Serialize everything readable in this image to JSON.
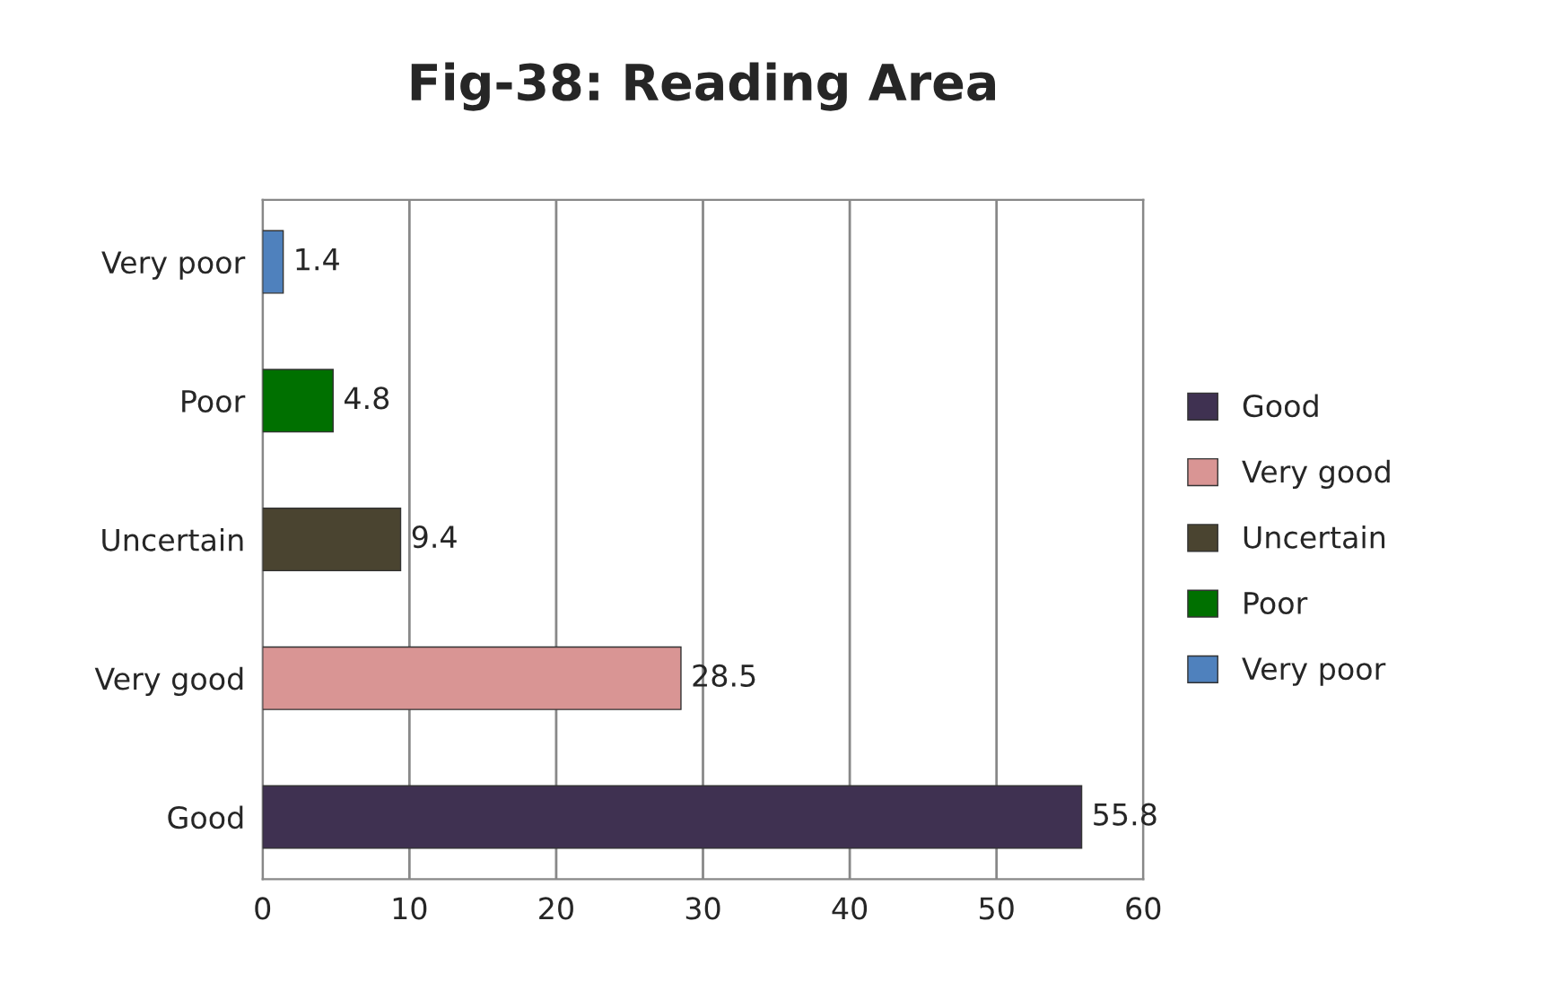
{
  "chart_data": {
    "type": "bar",
    "orientation": "horizontal",
    "stacked": true,
    "title": "Fig-38: Reading Area",
    "categories": [
      "Very poor",
      "Poor",
      "Uncertain",
      "Very good",
      "Good"
    ],
    "series": [
      {
        "name": "Good",
        "color": "#3f3151",
        "values": [
          null,
          null,
          null,
          null,
          55.8
        ]
      },
      {
        "name": "Very good",
        "color": "#d99594",
        "values": [
          null,
          null,
          null,
          28.5,
          null
        ]
      },
      {
        "name": "Uncertain",
        "color": "#4a4430",
        "values": [
          null,
          null,
          9.4,
          null,
          null
        ]
      },
      {
        "name": "Poor",
        "color": "#007000",
        "values": [
          null,
          4.8,
          null,
          null,
          null
        ]
      },
      {
        "name": "Very poor",
        "color": "#4f81bd",
        "values": [
          1.4,
          null,
          null,
          null,
          null
        ]
      }
    ],
    "xlim": [
      0,
      60
    ],
    "xticks": [
      0,
      10,
      20,
      30,
      40,
      50,
      60
    ],
    "grid": "x",
    "legend": "right",
    "data_labels": true
  }
}
